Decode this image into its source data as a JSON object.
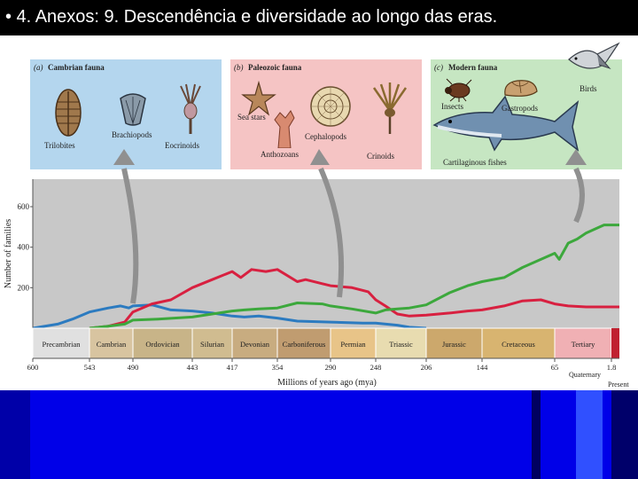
{
  "slide": {
    "title": "• 4. Anexos: 9. Descendência e diversidade ao longo das eras."
  },
  "panels": [
    {
      "tag": "(a)",
      "title": "Cambrian fauna",
      "color": "#b4d6ee",
      "labels": [
        "Trilobites",
        "Brachiopods",
        "Eocrinoids"
      ]
    },
    {
      "tag": "(b)",
      "title": "Paleozoic fauna",
      "color": "#f5c4c4",
      "labels": [
        "Sea stars",
        "Anthozoans",
        "Cephalopods",
        "Crinoids"
      ]
    },
    {
      "tag": "(c)",
      "title": "Modern fauna",
      "color": "#c6e6c2",
      "labels": [
        "Birds",
        "Insects",
        "Gastropods",
        "Cartilaginous fishes"
      ]
    }
  ],
  "chart_data": {
    "type": "line",
    "ylabel": "Number of families",
    "xlabel": "Millions of years ago (mya)",
    "ylim": [
      0,
      700
    ],
    "yticks": [
      200,
      400,
      600
    ],
    "xlim": [
      600,
      0
    ],
    "xtick_labels": [
      "600",
      "543",
      "490",
      "443",
      "417",
      "354",
      "290",
      "248",
      "206",
      "144",
      "65",
      "1.8"
    ],
    "series": [
      {
        "color": "#2c7bc0",
        "x": [
          600,
          575,
          560,
          543,
          520,
          505,
          495,
          490,
          475,
          460,
          443,
          430,
          417,
          400,
          380,
          354,
          330,
          290,
          260,
          248,
          230,
          220,
          206
        ],
        "y": [
          0,
          20,
          45,
          80,
          100,
          110,
          100,
          110,
          115,
          90,
          85,
          75,
          60,
          55,
          60,
          50,
          35,
          30,
          25,
          25,
          15,
          5,
          0
        ]
      },
      {
        "color": "#d82040",
        "x": [
          543,
          520,
          500,
          490,
          475,
          460,
          443,
          430,
          417,
          405,
          390,
          370,
          354,
          330,
          320,
          300,
          290,
          270,
          255,
          248,
          240,
          230,
          220,
          206,
          180,
          160,
          144,
          120,
          100,
          80,
          65,
          50,
          30,
          0
        ],
        "y": [
          0,
          10,
          30,
          80,
          120,
          140,
          200,
          240,
          280,
          250,
          290,
          280,
          290,
          230,
          240,
          220,
          210,
          200,
          180,
          140,
          110,
          70,
          60,
          65,
          75,
          85,
          90,
          110,
          135,
          140,
          120,
          110,
          105,
          105
        ]
      },
      {
        "color": "#3ca83c",
        "x": [
          543,
          520,
          500,
          490,
          470,
          443,
          430,
          417,
          400,
          380,
          354,
          330,
          300,
          290,
          270,
          248,
          240,
          230,
          220,
          206,
          180,
          160,
          144,
          120,
          100,
          80,
          65,
          60,
          50,
          40,
          30,
          20,
          10,
          0
        ],
        "y": [
          0,
          10,
          20,
          40,
          45,
          55,
          70,
          85,
          90,
          95,
          100,
          125,
          120,
          110,
          95,
          75,
          90,
          95,
          100,
          115,
          175,
          210,
          230,
          250,
          300,
          340,
          370,
          340,
          420,
          440,
          470,
          490,
          510,
          510
        ]
      }
    ],
    "periods": [
      {
        "name": "Precambrian",
        "start": 600,
        "end": 543,
        "color": "#e0e0e0"
      },
      {
        "name": "Cambrian",
        "start": 543,
        "end": 490,
        "color": "#d8c4a0"
      },
      {
        "name": "Ordovician",
        "start": 490,
        "end": 443,
        "color": "#c8b488"
      },
      {
        "name": "Silurian",
        "start": 443,
        "end": 417,
        "color": "#d0bc90"
      },
      {
        "name": "Devonian",
        "start": 417,
        "end": 354,
        "color": "#c8ac80"
      },
      {
        "name": "Carboniferous",
        "start": 354,
        "end": 290,
        "color": "#c09c70"
      },
      {
        "name": "Permian",
        "start": 290,
        "end": 248,
        "color": "#e8c488"
      },
      {
        "name": "Triassic",
        "start": 248,
        "end": 206,
        "color": "#e8dcb0"
      },
      {
        "name": "Jurassic",
        "start": 206,
        "end": 144,
        "color": "#cca86c"
      },
      {
        "name": "Cretaceous",
        "start": 144,
        "end": 65,
        "color": "#d8b470"
      },
      {
        "name": "Tertiary",
        "start": 65,
        "end": 1.8,
        "color": "#f0b0b4"
      }
    ],
    "extra_labels": {
      "quaternary": "Quaternary",
      "present": "Present"
    }
  }
}
